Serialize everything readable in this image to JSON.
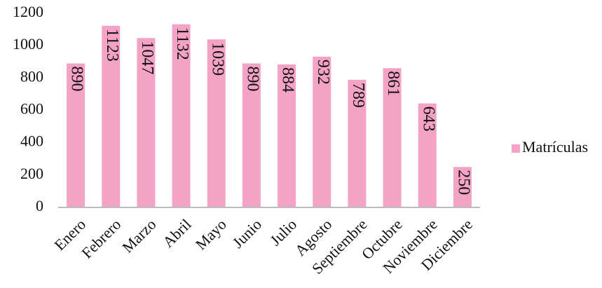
{
  "chart_data": {
    "type": "bar",
    "categories": [
      "Enero",
      "Febrero",
      "Marzo",
      "Abril",
      "Mayo",
      "Junio",
      "Julio",
      "Agosto",
      "Septiembre",
      "Octubre",
      "Noviembre",
      "Diciembre"
    ],
    "series": [
      {
        "name": "Matrículas",
        "color": "#f4a3c6",
        "values": [
          890,
          1123,
          1047,
          1132,
          1039,
          890,
          884,
          932,
          789,
          861,
          643,
          250
        ]
      }
    ],
    "ylim": [
      0,
      1200
    ],
    "yticks": [
      0,
      200,
      400,
      600,
      800,
      1000,
      1200
    ],
    "grid": false,
    "legend": "right",
    "data_labels": true
  }
}
